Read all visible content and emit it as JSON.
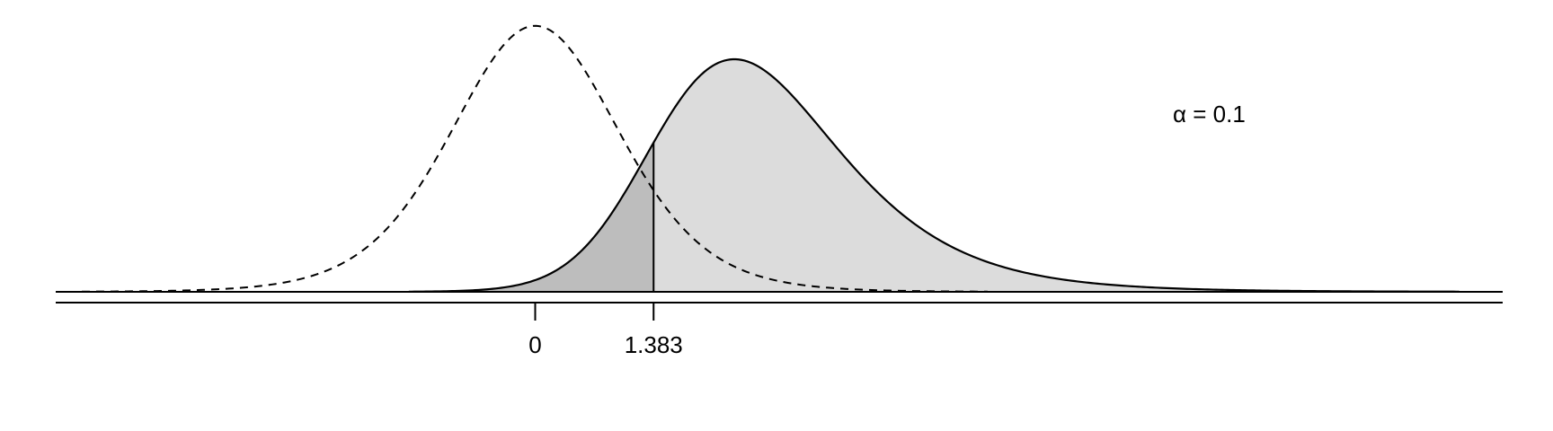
{
  "chart_data": {
    "type": "area",
    "title": "",
    "xlabel": "",
    "ylabel": "",
    "xlim": [
      -5.6,
      11.3
    ],
    "ylim": [
      0,
      0.41
    ],
    "grid": false,
    "ticks": [
      {
        "value": 0,
        "label": "0"
      },
      {
        "value": 1.383,
        "label": "1.383"
      }
    ],
    "critical_value": 1.383,
    "alpha_label": "α = 0.1",
    "series": [
      {
        "distribution": "t",
        "df": 9,
        "ncp": 0,
        "style": "dashed",
        "color": "#000000"
      },
      {
        "distribution": "noncentral-t",
        "df": 9,
        "ncp": 2.5,
        "style": "solid",
        "color": "#000000",
        "fill_left_of_critical": "#bdbdbd",
        "fill_right_of_critical": "#dcdcdc"
      }
    ]
  }
}
